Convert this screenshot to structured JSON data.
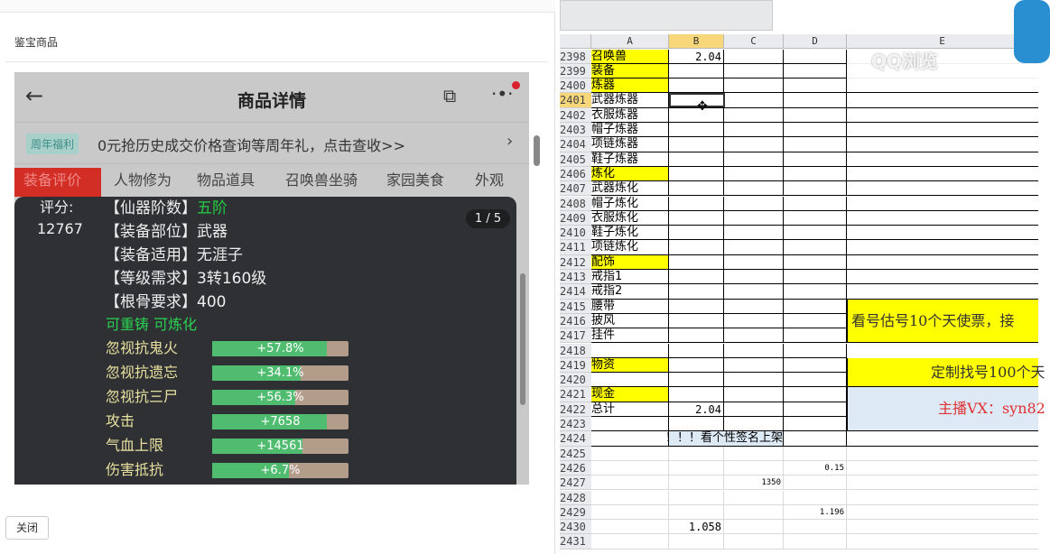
{
  "left": {
    "title": "鉴宝商品",
    "close_label": "关闭",
    "phone": {
      "nav_title": "商品详情",
      "back_icon": "arrow-left-icon",
      "share_icon": "share-icon",
      "more_icon": "more-icon",
      "banner_tag": "周年福利",
      "banner_text": "0元抢历史成交价格查询等周年礼，点击查收>>",
      "tabs": [
        "装备评价",
        "人物修为",
        "物品道具",
        "召唤兽坐骑",
        "家园美食",
        "外观"
      ]
    },
    "overlay": {
      "score_label": "评分:",
      "score_value": "12767",
      "pager": "1 / 5",
      "info": [
        {
          "k": "【仙器阶数】",
          "v": "五阶",
          "green": true
        },
        {
          "k": "【装备部位】",
          "v": "武器"
        },
        {
          "k": "【装备适用】",
          "v": "无涯子"
        },
        {
          "k": "【等级需求】",
          "v": "3转160级"
        },
        {
          "k": "【根骨要求】",
          "v": "400"
        }
      ],
      "flags": "可重铸 可炼化",
      "stats": [
        {
          "name": "忽视抗鬼火",
          "value": "+57.8%",
          "fill": 0.84
        },
        {
          "name": "忽视抗遗忘",
          "value": "+34.1%",
          "fill": 0.65
        },
        {
          "name": "忽视抗三尸",
          "value": "+56.3%",
          "fill": 0.61
        },
        {
          "name": "攻击",
          "value": "+7658",
          "fill": 0.84
        },
        {
          "name": "气血上限",
          "value": "+14561",
          "fill": 0.66
        },
        {
          "name": "伤害抵抗",
          "value": "+6.7%",
          "fill": 0.56
        }
      ]
    }
  },
  "sheet": {
    "columns": [
      "A",
      "B",
      "C",
      "D",
      "E"
    ],
    "selected_cell": "B2401",
    "rows": [
      {
        "n": "2398",
        "a": "召唤兽",
        "ay": true,
        "b": "2.04"
      },
      {
        "n": "2399",
        "a": "装备",
        "ay": true
      },
      {
        "n": "2400",
        "a": "炼器",
        "ay": true
      },
      {
        "n": "2401",
        "a": "武器炼器",
        "sel": true
      },
      {
        "n": "2402",
        "a": "衣服炼器"
      },
      {
        "n": "2403",
        "a": "帽子炼器"
      },
      {
        "n": "2404",
        "a": "项链炼器"
      },
      {
        "n": "2405",
        "a": "鞋子炼器"
      },
      {
        "n": "2406",
        "a": "炼化",
        "ay": true
      },
      {
        "n": "2407",
        "a": "武器炼化"
      },
      {
        "n": "2408",
        "a": "帽子炼化"
      },
      {
        "n": "2409",
        "a": "衣服炼化"
      },
      {
        "n": "2410",
        "a": "鞋子炼化"
      },
      {
        "n": "2411",
        "a": "项链炼化"
      },
      {
        "n": "2412",
        "a": "配饰",
        "ay": true
      },
      {
        "n": "2413",
        "a": "戒指1"
      },
      {
        "n": "2414",
        "a": "戒指2"
      },
      {
        "n": "2415",
        "a": "腰带"
      },
      {
        "n": "2416",
        "a": "披风"
      },
      {
        "n": "2417",
        "a": "挂件"
      },
      {
        "n": "2418",
        "a": ""
      },
      {
        "n": "2419",
        "a": "物资",
        "ay": true
      },
      {
        "n": "2420",
        "a": ""
      },
      {
        "n": "2421",
        "a": "现金",
        "ay": true
      },
      {
        "n": "2422",
        "a": "总计",
        "b": "2.04"
      },
      {
        "n": "2423",
        "a": ""
      },
      {
        "n": "2424",
        "a": "",
        "bc": "看个性签名上架！！！"
      },
      {
        "n": "2425",
        "light": true
      },
      {
        "n": "2426",
        "light": true,
        "d": "0.15"
      },
      {
        "n": "2427",
        "light": true,
        "c": "1350"
      },
      {
        "n": "2428",
        "light": true
      },
      {
        "n": "2429",
        "light": true,
        "d": "1.196"
      },
      {
        "n": "2430",
        "light": true,
        "b": "1.058"
      },
      {
        "n": "2431",
        "light": true
      }
    ],
    "merged": [
      {
        "text": "看号估号10个天使票，接",
        "bg": "#ffff00",
        "color": "#333"
      },
      {
        "text": "定制找号100个天",
        "bg": "#ffff00",
        "color": "#333"
      },
      {
        "text": "主播VX：syn82",
        "bg": "#dde9f5",
        "color": "#e03030"
      }
    ],
    "watermark": "QQ浏览"
  }
}
